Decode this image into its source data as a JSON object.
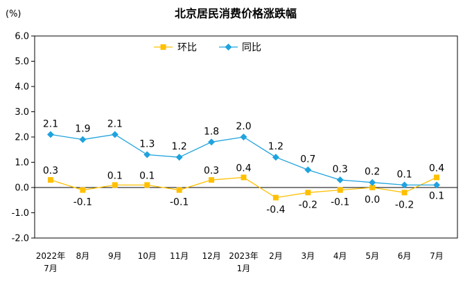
{
  "chart_data": {
    "type": "line",
    "title": "北京居民消费价格涨跌幅",
    "ylabel": "(%)",
    "ylim": [
      -2.0,
      6.0
    ],
    "yticks": [
      "-2.0",
      "-1.0",
      "0.0",
      "1.0",
      "2.0",
      "3.0",
      "4.0",
      "5.0",
      "6.0"
    ],
    "categories": [
      [
        "2022年",
        "7月"
      ],
      [
        "8月"
      ],
      [
        "9月"
      ],
      [
        "10月"
      ],
      [
        "11月"
      ],
      [
        "12月"
      ],
      [
        "2023年",
        "1月"
      ],
      [
        "2月"
      ],
      [
        "3月"
      ],
      [
        "4月"
      ],
      [
        "5月"
      ],
      [
        "6月"
      ],
      [
        "7月"
      ]
    ],
    "legend_position": "top-center",
    "grid": false,
    "series": [
      {
        "name": "环比",
        "color": "#FFC000",
        "marker": "square",
        "values": [
          0.3,
          -0.1,
          0.1,
          0.1,
          -0.1,
          0.3,
          0.4,
          -0.4,
          -0.2,
          -0.1,
          0.0,
          -0.2,
          0.4
        ],
        "labels": [
          "0.3",
          "-0.1",
          "0.1",
          "0.1",
          "-0.1",
          "0.3",
          "0.4",
          "-0.4",
          "-0.2",
          "-0.1",
          "0.0",
          "-0.2",
          "0.4"
        ]
      },
      {
        "name": "同比",
        "color": "#1FA3DE",
        "marker": "diamond",
        "values": [
          2.1,
          1.9,
          2.1,
          1.3,
          1.2,
          1.8,
          2.0,
          1.2,
          0.7,
          0.3,
          0.2,
          0.1,
          0.1
        ],
        "labels": [
          "2.1",
          "1.9",
          "2.1",
          "1.3",
          "1.2",
          "1.8",
          "2.0",
          "1.2",
          "0.7",
          "0.3",
          "0.2",
          "0.1",
          "0.1"
        ]
      }
    ]
  }
}
